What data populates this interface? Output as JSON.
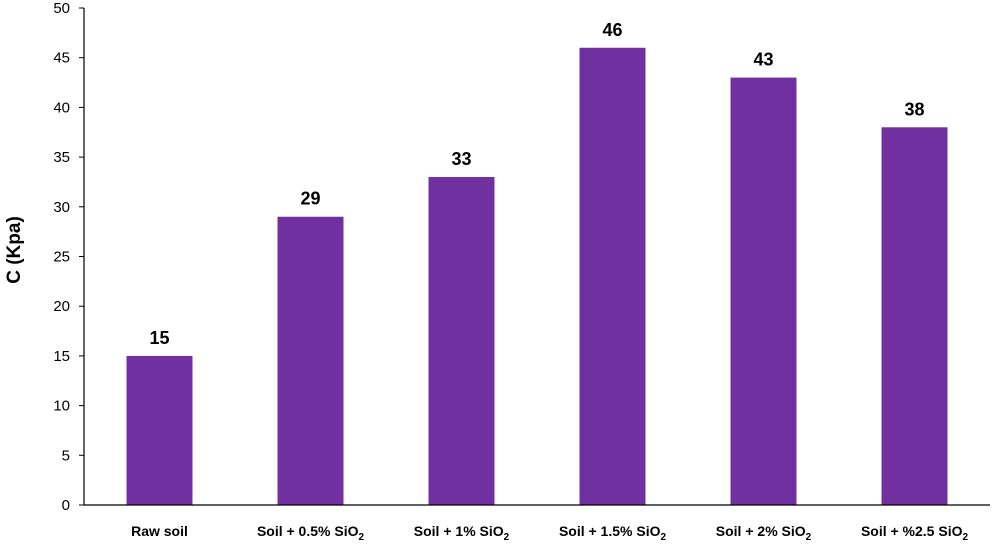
{
  "chart_data": {
    "type": "bar",
    "categories": [
      {
        "text": "Raw soil",
        "sub": ""
      },
      {
        "text": "Soil + 0.5% SiO",
        "sub": "2"
      },
      {
        "text": "Soil + 1% SiO",
        "sub": "2"
      },
      {
        "text": "Soil + 1.5% SiO",
        "sub": "2"
      },
      {
        "text": "Soil + 2% SiO",
        "sub": "2"
      },
      {
        "text": "Soil + %2.5 SiO",
        "sub": "2"
      }
    ],
    "values": [
      15,
      29,
      33,
      46,
      43,
      38
    ],
    "data_labels": [
      "15",
      "29",
      "33",
      "46",
      "43",
      "38"
    ],
    "ylabel": "C (Kpa)",
    "xlabel": "",
    "ylim": [
      0,
      50
    ],
    "yticks": [
      0,
      5,
      10,
      15,
      20,
      25,
      30,
      35,
      40,
      45,
      50
    ],
    "bar_color": "#7030a0",
    "grid": false,
    "legend": "none"
  }
}
